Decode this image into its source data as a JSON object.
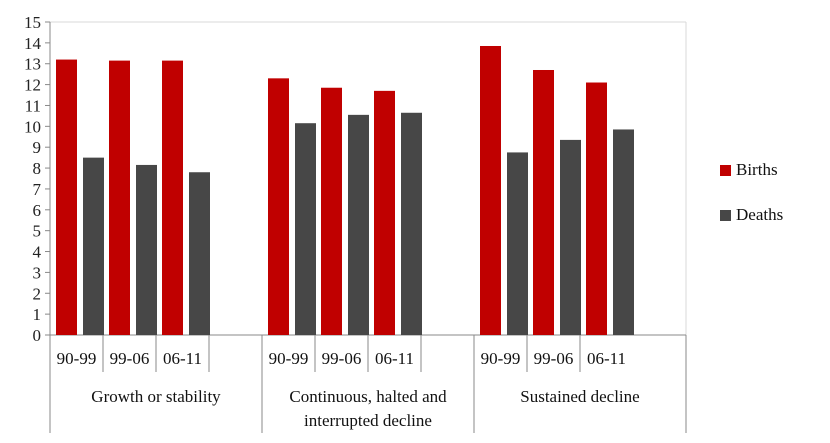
{
  "chart_data": {
    "type": "bar",
    "title": "",
    "xlabel": "",
    "ylabel": "",
    "ylim": [
      0,
      15
    ],
    "yticks": [
      0,
      1,
      2,
      3,
      4,
      5,
      6,
      7,
      8,
      9,
      10,
      11,
      12,
      13,
      14,
      15
    ],
    "grid": false,
    "legend_position": "right",
    "groups": [
      {
        "label": "Growth or stability",
        "label_lines": [
          "Growth or stability"
        ],
        "categories": [
          "90-99",
          "99-06",
          "06-11"
        ]
      },
      {
        "label": "Continuous, halted and interrupted decline",
        "label_lines": [
          "Continuous, halted and",
          "interrupted decline"
        ],
        "categories": [
          "90-99",
          "99-06",
          "06-11"
        ]
      },
      {
        "label": "Sustained decline",
        "label_lines": [
          "Sustained decline"
        ],
        "categories": [
          "90-99",
          "99-06",
          "06-11"
        ]
      }
    ],
    "series": [
      {
        "name": "Births",
        "color": "#c00000",
        "values": [
          [
            13.2,
            13.15,
            13.15
          ],
          [
            12.3,
            11.85,
            11.7
          ],
          [
            13.85,
            12.7,
            12.1
          ]
        ]
      },
      {
        "name": "Deaths",
        "color": "#474747",
        "values": [
          [
            8.5,
            8.15,
            7.8
          ],
          [
            10.15,
            10.55,
            10.65
          ],
          [
            8.75,
            9.35,
            9.85
          ]
        ]
      }
    ]
  }
}
